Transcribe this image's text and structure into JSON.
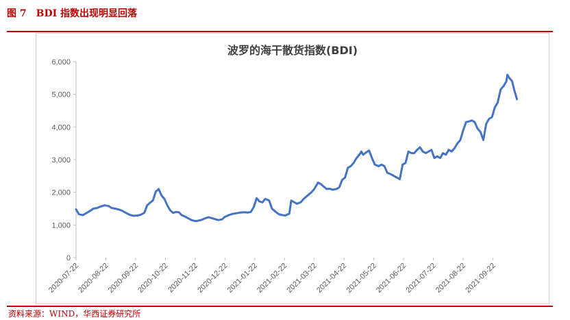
{
  "figure": {
    "number": "图 7",
    "caption": "BDI 指数出现明显回落",
    "source": "资料来源：WIND，华西证券研究所"
  },
  "chart_data": {
    "type": "line",
    "title": "波罗的海干散货指数(BDI)",
    "xlabel": "",
    "ylabel": "",
    "ylim": [
      0,
      6000
    ],
    "yticks": [
      "0",
      "1,000",
      "2,000",
      "3,000",
      "4,000",
      "5,000",
      "6,000"
    ],
    "xticks": [
      "2020-07-22",
      "2020-08-22",
      "2020-09-22",
      "2020-10-22",
      "2020-11-22",
      "2020-12-22",
      "2021-01-22",
      "2021-02-22",
      "2021-03-22",
      "2021-04-22",
      "2021-05-22",
      "2021-06-22",
      "2021-07-22",
      "2021-08-22",
      "2021-09-22"
    ],
    "legend": "none",
    "grid": false,
    "series": [
      {
        "color": "#4472c4",
        "points": [
          [
            "2020-07-22",
            1480
          ],
          [
            "2020-07-25",
            1330
          ],
          [
            "2020-07-29",
            1300
          ],
          [
            "2020-08-01",
            1350
          ],
          [
            "2020-08-05",
            1420
          ],
          [
            "2020-08-09",
            1500
          ],
          [
            "2020-08-13",
            1520
          ],
          [
            "2020-08-17",
            1570
          ],
          [
            "2020-08-21",
            1600
          ],
          [
            "2020-08-25",
            1580
          ],
          [
            "2020-08-28",
            1520
          ],
          [
            "2020-09-01",
            1500
          ],
          [
            "2020-09-05",
            1470
          ],
          [
            "2020-09-09",
            1420
          ],
          [
            "2020-09-12",
            1370
          ],
          [
            "2020-09-16",
            1310
          ],
          [
            "2020-09-20",
            1280
          ],
          [
            "2020-09-24",
            1290
          ],
          [
            "2020-09-27",
            1310
          ],
          [
            "2020-10-01",
            1370
          ],
          [
            "2020-10-04",
            1600
          ],
          [
            "2020-10-07",
            1680
          ],
          [
            "2020-10-10",
            1750
          ],
          [
            "2020-10-13",
            2020
          ],
          [
            "2020-10-16",
            2100
          ],
          [
            "2020-10-19",
            1900
          ],
          [
            "2020-10-22",
            1800
          ],
          [
            "2020-10-25",
            1600
          ],
          [
            "2020-10-28",
            1450
          ],
          [
            "2020-10-31",
            1370
          ],
          [
            "2020-11-03",
            1400
          ],
          [
            "2020-11-06",
            1390
          ],
          [
            "2020-11-09",
            1300
          ],
          [
            "2020-11-13",
            1250
          ],
          [
            "2020-11-16",
            1200
          ],
          [
            "2020-11-19",
            1150
          ],
          [
            "2020-11-23",
            1120
          ],
          [
            "2020-11-26",
            1130
          ],
          [
            "2020-11-30",
            1160
          ],
          [
            "2020-12-03",
            1200
          ],
          [
            "2020-12-07",
            1240
          ],
          [
            "2020-12-10",
            1210
          ],
          [
            "2020-12-14",
            1180
          ],
          [
            "2020-12-17",
            1150
          ],
          [
            "2020-12-21",
            1170
          ],
          [
            "2020-12-24",
            1250
          ],
          [
            "2020-12-28",
            1300
          ],
          [
            "2021-01-01",
            1340
          ],
          [
            "2021-01-05",
            1360
          ],
          [
            "2021-01-09",
            1380
          ],
          [
            "2021-01-13",
            1390
          ],
          [
            "2021-01-17",
            1380
          ],
          [
            "2021-01-20",
            1400
          ],
          [
            "2021-01-23",
            1550
          ],
          [
            "2021-01-26",
            1820
          ],
          [
            "2021-01-29",
            1720
          ],
          [
            "2021-02-01",
            1690
          ],
          [
            "2021-02-04",
            1800
          ],
          [
            "2021-02-08",
            1750
          ],
          [
            "2021-02-11",
            1500
          ],
          [
            "2021-02-15",
            1400
          ],
          [
            "2021-02-18",
            1330
          ],
          [
            "2021-02-22",
            1300
          ],
          [
            "2021-02-25",
            1290
          ],
          [
            "2021-03-01",
            1350
          ],
          [
            "2021-03-03",
            1750
          ],
          [
            "2021-03-06",
            1700
          ],
          [
            "2021-03-09",
            1650
          ],
          [
            "2021-03-13",
            1700
          ],
          [
            "2021-03-16",
            1800
          ],
          [
            "2021-03-20",
            1900
          ],
          [
            "2021-03-24",
            2000
          ],
          [
            "2021-03-27",
            2100
          ],
          [
            "2021-03-31",
            2300
          ],
          [
            "2021-04-03",
            2250
          ],
          [
            "2021-04-06",
            2170
          ],
          [
            "2021-04-09",
            2100
          ],
          [
            "2021-04-12",
            2110
          ],
          [
            "2021-04-15",
            2080
          ],
          [
            "2021-04-19",
            2100
          ],
          [
            "2021-04-22",
            2150
          ],
          [
            "2021-04-25",
            2380
          ],
          [
            "2021-04-28",
            2450
          ],
          [
            "2021-05-01",
            2750
          ],
          [
            "2021-05-04",
            2800
          ],
          [
            "2021-05-07",
            2900
          ],
          [
            "2021-05-10",
            3050
          ],
          [
            "2021-05-13",
            3150
          ],
          [
            "2021-05-15",
            3250
          ],
          [
            "2021-05-17",
            3150
          ],
          [
            "2021-05-20",
            3220
          ],
          [
            "2021-05-23",
            3280
          ],
          [
            "2021-05-26",
            3050
          ],
          [
            "2021-05-29",
            2850
          ],
          [
            "2021-06-02",
            2800
          ],
          [
            "2021-06-05",
            2850
          ],
          [
            "2021-06-08",
            2800
          ],
          [
            "2021-06-11",
            2600
          ],
          [
            "2021-06-15",
            2550
          ],
          [
            "2021-06-18",
            2500
          ],
          [
            "2021-06-21",
            2450
          ],
          [
            "2021-06-24",
            2400
          ],
          [
            "2021-06-27",
            2850
          ],
          [
            "2021-06-30",
            2900
          ],
          [
            "2021-07-03",
            3250
          ],
          [
            "2021-07-06",
            3200
          ],
          [
            "2021-07-09",
            3200
          ],
          [
            "2021-07-12",
            3300
          ],
          [
            "2021-07-15",
            3380
          ],
          [
            "2021-07-18",
            3250
          ],
          [
            "2021-07-21",
            3200
          ],
          [
            "2021-07-24",
            3250
          ],
          [
            "2021-07-27",
            3300
          ],
          [
            "2021-07-30",
            3050
          ],
          [
            "2021-08-02",
            3100
          ],
          [
            "2021-08-05",
            3050
          ],
          [
            "2021-08-08",
            3200
          ],
          [
            "2021-08-11",
            3150
          ],
          [
            "2021-08-14",
            3300
          ],
          [
            "2021-08-17",
            3250
          ],
          [
            "2021-08-20",
            3350
          ],
          [
            "2021-08-23",
            3500
          ],
          [
            "2021-08-26",
            3600
          ],
          [
            "2021-08-29",
            3900
          ],
          [
            "2021-09-01",
            4150
          ],
          [
            "2021-09-04",
            4170
          ],
          [
            "2021-09-07",
            4200
          ],
          [
            "2021-09-10",
            4150
          ],
          [
            "2021-09-13",
            3950
          ],
          [
            "2021-09-16",
            3850
          ],
          [
            "2021-09-19",
            3600
          ],
          [
            "2021-09-22",
            4100
          ],
          [
            "2021-09-25",
            4250
          ],
          [
            "2021-09-28",
            4300
          ],
          [
            "2021-10-01",
            4600
          ],
          [
            "2021-10-04",
            4750
          ],
          [
            "2021-10-07",
            5150
          ],
          [
            "2021-10-10",
            5250
          ],
          [
            "2021-10-13",
            5400
          ],
          [
            "2021-10-14",
            5600
          ],
          [
            "2021-10-16",
            5500
          ],
          [
            "2021-10-19",
            5400
          ],
          [
            "2021-10-21",
            5150
          ],
          [
            "2021-10-24",
            4850
          ]
        ]
      }
    ]
  }
}
